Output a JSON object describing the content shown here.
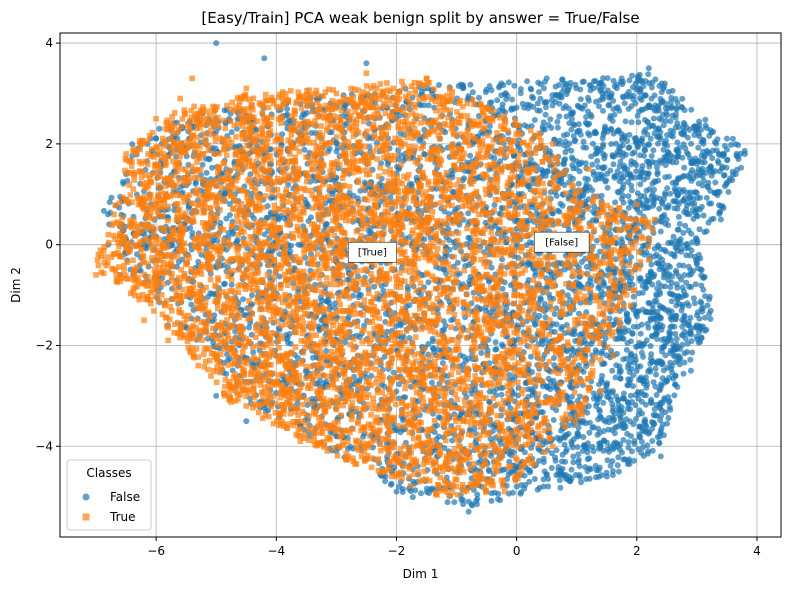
{
  "chart_data": {
    "type": "scatter",
    "title": "[Easy/Train] PCA weak benign split by answer = True/False",
    "xlabel": "Dim 1",
    "ylabel": "Dim 2",
    "xlim": [
      -7.6,
      4.4
    ],
    "ylim": [
      -5.8,
      4.2
    ],
    "xticks": [
      -6,
      -4,
      -2,
      0,
      2,
      4
    ],
    "yticks": [
      -4,
      -2,
      0,
      2,
      4
    ],
    "grid": true,
    "legend": {
      "title": "Classes",
      "placement": "lower-left",
      "entries": [
        "False",
        "True"
      ]
    },
    "series": [
      {
        "name": "False",
        "marker": "circle",
        "color": "#1f77b4",
        "alpha": 0.7,
        "region_hull": [
          [
            -6.9,
            0.6
          ],
          [
            -6.4,
            2.0
          ],
          [
            -5.5,
            2.6
          ],
          [
            -3.0,
            3.0
          ],
          [
            -1.0,
            3.2
          ],
          [
            1.0,
            3.3
          ],
          [
            2.3,
            3.4
          ],
          [
            3.4,
            2.2
          ],
          [
            3.9,
            1.9
          ],
          [
            3.5,
            0.8
          ],
          [
            3.0,
            0.0
          ],
          [
            3.3,
            -1.4
          ],
          [
            2.8,
            -2.5
          ],
          [
            2.4,
            -4.0
          ],
          [
            1.6,
            -4.6
          ],
          [
            0.5,
            -4.9
          ],
          [
            -0.8,
            -5.2
          ],
          [
            -1.8,
            -5.0
          ],
          [
            -2.6,
            -4.4
          ],
          [
            -4.4,
            -3.2
          ],
          [
            -5.6,
            -1.6
          ],
          [
            -6.4,
            -0.6
          ]
        ],
        "highlighted_points": [
          [
            -5.0,
            4.0
          ],
          [
            -4.2,
            3.7
          ],
          [
            -2.5,
            3.6
          ],
          [
            0.5,
            3.3
          ],
          [
            2.2,
            3.5
          ],
          [
            3.6,
            2.1
          ],
          [
            3.8,
            1.8
          ],
          [
            3.4,
            0.5
          ],
          [
            3.0,
            -1.4
          ],
          [
            2.9,
            -2.5
          ],
          [
            2.4,
            -4.2
          ],
          [
            1.5,
            -4.6
          ],
          [
            0.0,
            -4.8
          ],
          [
            -0.8,
            -5.3
          ],
          [
            -2.0,
            -4.9
          ],
          [
            -3.0,
            -4.1
          ],
          [
            -4.5,
            -3.5
          ],
          [
            -5.0,
            -3.0
          ],
          [
            -5.8,
            -1.6
          ],
          [
            -6.6,
            -0.6
          ],
          [
            -6.8,
            0.0
          ],
          [
            -6.8,
            0.6
          ],
          [
            -6.5,
            1.4
          ]
        ]
      },
      {
        "name": "True",
        "marker": "square",
        "color": "#ff7f0e",
        "alpha": 0.7,
        "region_hull": [
          [
            -7.1,
            -0.6
          ],
          [
            -6.7,
            0.7
          ],
          [
            -6.5,
            1.8
          ],
          [
            -5.8,
            2.6
          ],
          [
            -4.6,
            3.0
          ],
          [
            -3.0,
            3.1
          ],
          [
            -1.5,
            3.3
          ],
          [
            -0.4,
            2.7
          ],
          [
            0.4,
            2.2
          ],
          [
            0.9,
            1.4
          ],
          [
            1.6,
            0.8
          ],
          [
            2.3,
            0.4
          ],
          [
            2.0,
            -0.8
          ],
          [
            1.8,
            -1.6
          ],
          [
            1.3,
            -2.5
          ],
          [
            1.1,
            -3.4
          ],
          [
            0.6,
            -3.9
          ],
          [
            0.3,
            -4.5
          ],
          [
            -0.4,
            -4.9
          ],
          [
            -1.3,
            -5.0
          ],
          [
            -2.2,
            -4.6
          ],
          [
            -3.0,
            -4.2
          ],
          [
            -4.0,
            -3.6
          ],
          [
            -4.8,
            -3.1
          ],
          [
            -5.4,
            -2.2
          ],
          [
            -6.0,
            -1.4
          ],
          [
            -6.6,
            -0.8
          ]
        ],
        "highlighted_points": [
          [
            -7.0,
            -0.6
          ],
          [
            -6.6,
            -0.6
          ],
          [
            -6.7,
            0.6
          ],
          [
            -6.5,
            1.8
          ],
          [
            -6.0,
            2.5
          ],
          [
            -5.6,
            2.9
          ],
          [
            -5.4,
            3.3
          ],
          [
            -4.5,
            3.1
          ],
          [
            -3.0,
            3.0
          ],
          [
            -2.5,
            3.4
          ],
          [
            -1.5,
            3.3
          ],
          [
            -0.6,
            2.8
          ],
          [
            0.6,
            2.0
          ],
          [
            1.2,
            1.5
          ],
          [
            2.0,
            0.8
          ],
          [
            2.3,
            0.5
          ],
          [
            2.2,
            -0.3
          ],
          [
            1.9,
            -1.2
          ],
          [
            1.6,
            -2.2
          ],
          [
            1.4,
            -2.9
          ],
          [
            1.0,
            -3.4
          ],
          [
            0.6,
            -4.0
          ],
          [
            -0.2,
            -4.9
          ],
          [
            -1.0,
            -4.8
          ],
          [
            -2.0,
            -4.6
          ],
          [
            -2.8,
            -4.2
          ],
          [
            -3.6,
            -3.9
          ],
          [
            -4.5,
            -3.2
          ],
          [
            -5.3,
            -2.4
          ],
          [
            -5.8,
            -1.9
          ],
          [
            -6.2,
            -1.5
          ]
        ]
      }
    ],
    "annotations": [
      {
        "text": "[True]",
        "x": -2.4,
        "y": -0.15
      },
      {
        "text": "[False]",
        "x": 0.75,
        "y": 0.05
      }
    ]
  }
}
